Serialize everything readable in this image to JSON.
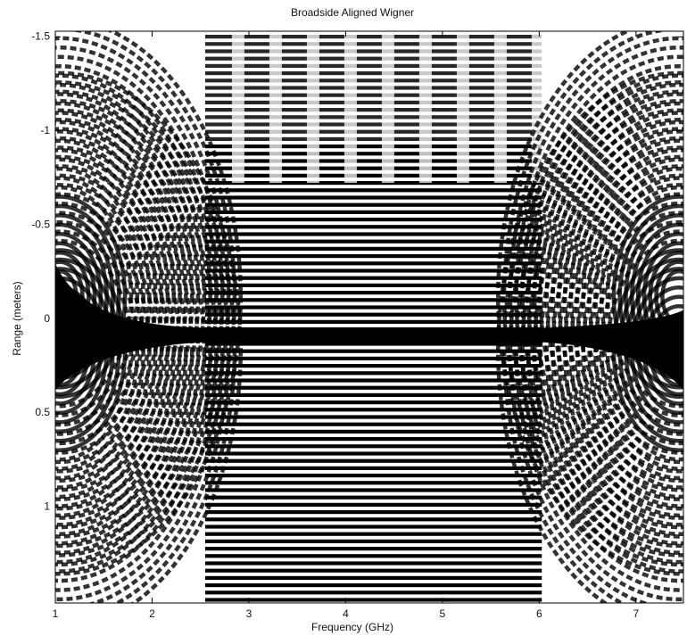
{
  "chart_data": {
    "type": "image",
    "title": "Broadside Aligned Wigner",
    "x_label": "Frequency (GHz)",
    "y_label": "Range (meters)",
    "xlim": [
      1,
      7.49
    ],
    "xticks": [
      1,
      2,
      3,
      4,
      5,
      6,
      7
    ],
    "ylim": [
      -1.53,
      1.51
    ],
    "y_inverted": true,
    "yticks": [
      -1.5,
      -1,
      -0.5,
      0,
      0.5,
      1
    ]
  }
}
